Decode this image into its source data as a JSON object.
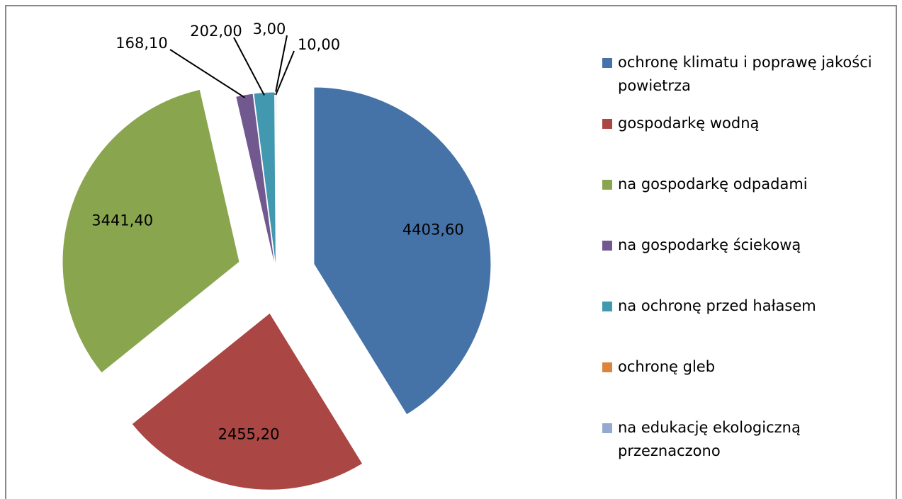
{
  "chart_data": {
    "type": "pie",
    "categories": [
      "ochronę klimatu i poprawę jakości powietrza",
      "gospodarkę wodną",
      "na gospodarkę odpadami",
      "na gospodarkę ściekową",
      "na ochronę przed hałasem",
      "ochronę gleb",
      "na edukację ekologiczną przeznaczono"
    ],
    "values": [
      4403.6,
      2455.2,
      3441.4,
      168.1,
      202.0,
      3.0,
      10.0
    ],
    "value_labels": [
      "4403,60",
      "2455,20",
      "3441,40",
      "168,10",
      "202,00",
      "3,00",
      "10,00"
    ],
    "colors": [
      "#4572a7",
      "#aa4643",
      "#89a54e",
      "#71588f",
      "#4198af",
      "#db843d",
      "#93a9cf"
    ],
    "legend": "right"
  }
}
